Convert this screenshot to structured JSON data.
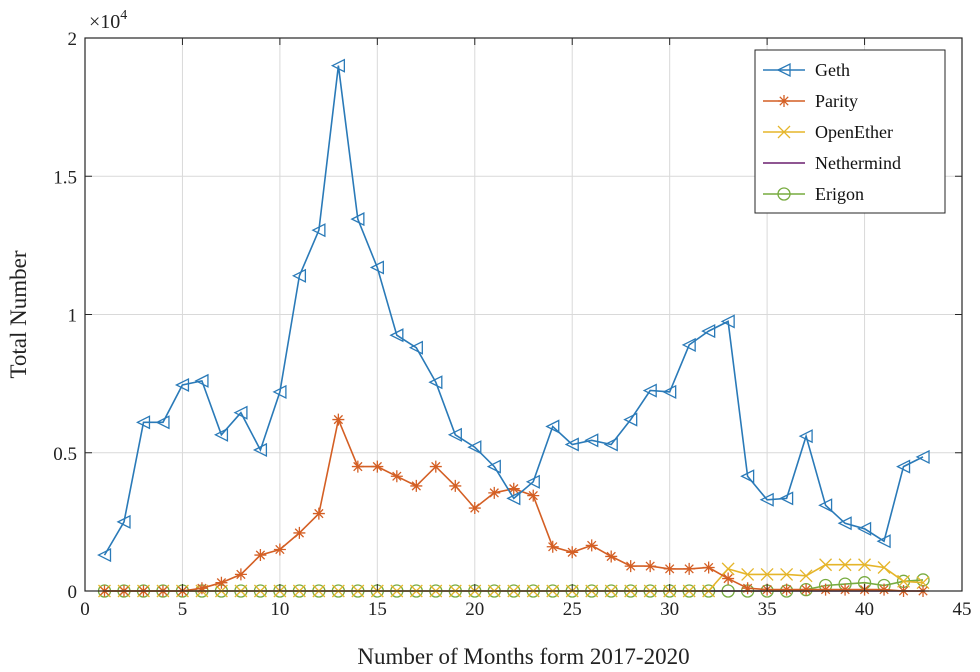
{
  "chart_data": {
    "type": "line",
    "title": "",
    "xlabel": "Number of Months form 2017-2020",
    "ylabel": "Total Number",
    "y_exponent_label": "×10",
    "y_exponent_power": "4",
    "xlim": [
      0,
      45
    ],
    "ylim": [
      0,
      2
    ],
    "x_ticks": [
      0,
      5,
      10,
      15,
      20,
      25,
      30,
      35,
      40,
      45
    ],
    "x_tick_labels": [
      "0",
      "5",
      "10",
      "15",
      "20",
      "25",
      "30",
      "35",
      "40",
      "45"
    ],
    "y_ticks": [
      0,
      0.5,
      1,
      1.5,
      2
    ],
    "y_tick_labels": [
      "0",
      "0.5",
      "1",
      "1.5",
      "2"
    ],
    "grid": true,
    "legend_position": "top-right",
    "x": [
      1,
      2,
      3,
      4,
      5,
      6,
      7,
      8,
      9,
      10,
      11,
      12,
      13,
      14,
      15,
      16,
      17,
      18,
      19,
      20,
      21,
      22,
      23,
      24,
      25,
      26,
      27,
      28,
      29,
      30,
      31,
      32,
      33,
      34,
      35,
      36,
      37,
      38,
      39,
      40,
      41,
      42,
      43
    ],
    "series": [
      {
        "name": "Geth",
        "color": "#2a7ab8",
        "marker": "triangle-left",
        "values": [
          0.13,
          0.25,
          0.61,
          0.61,
          0.745,
          0.76,
          0.565,
          0.645,
          0.51,
          0.72,
          1.14,
          1.305,
          1.9,
          1.345,
          1.17,
          0.925,
          0.88,
          0.755,
          0.565,
          0.52,
          0.45,
          0.335,
          0.395,
          0.595,
          0.53,
          0.545,
          0.53,
          0.62,
          0.725,
          0.72,
          0.89,
          0.94,
          0.975,
          0.415,
          0.33,
          0.335,
          0.56,
          0.31,
          0.245,
          0.225,
          0.18,
          0.45,
          0.485
        ]
      },
      {
        "name": "Parity",
        "color": "#d45f24",
        "marker": "asterisk",
        "values": [
          0,
          0,
          0,
          0,
          0,
          0.01,
          0.03,
          0.06,
          0.13,
          0.15,
          0.21,
          0.28,
          0.62,
          0.45,
          0.45,
          0.415,
          0.38,
          0.45,
          0.38,
          0.3,
          0.355,
          0.37,
          0.345,
          0.16,
          0.14,
          0.165,
          0.125,
          0.09,
          0.09,
          0.08,
          0.08,
          0.085,
          0.045,
          0.01,
          0.005,
          0.005,
          0.005,
          0.005,
          0.005,
          0.005,
          0.005,
          0,
          0
        ]
      },
      {
        "name": "OpenEther",
        "color": "#e5b52a",
        "marker": "x",
        "values": [
          0,
          0,
          0,
          0,
          0,
          0,
          0,
          0,
          0,
          0,
          0,
          0,
          0,
          0,
          0,
          0,
          0,
          0,
          0,
          0,
          0,
          0,
          0,
          0,
          0,
          0,
          0,
          0,
          0,
          0,
          0,
          0,
          0.08,
          0.06,
          0.06,
          0.06,
          0.055,
          0.095,
          0.095,
          0.095,
          0.085,
          0.035,
          0.03
        ]
      },
      {
        "name": "Nethermind",
        "color": "#6a1f6e",
        "marker": "none",
        "values": [
          0,
          0,
          0,
          0,
          0,
          0,
          0,
          0,
          0,
          0,
          0,
          0,
          0,
          0,
          0,
          0,
          0,
          0,
          0,
          0,
          0,
          0,
          0,
          0,
          0,
          0,
          0,
          0,
          0,
          0,
          0,
          0,
          0,
          0,
          0,
          0,
          0,
          0,
          0,
          0,
          0,
          0,
          0
        ]
      },
      {
        "name": "Erigon",
        "color": "#77ab3f",
        "marker": "circle",
        "values": [
          0,
          0,
          0,
          0,
          0,
          0,
          0,
          0,
          0,
          0,
          0,
          0,
          0,
          0,
          0,
          0,
          0,
          0,
          0,
          0,
          0,
          0,
          0,
          0,
          0,
          0,
          0,
          0,
          0,
          0,
          0,
          0,
          0,
          0,
          0,
          0,
          0.005,
          0.02,
          0.025,
          0.03,
          0.02,
          0.035,
          0.04
        ]
      }
    ]
  }
}
